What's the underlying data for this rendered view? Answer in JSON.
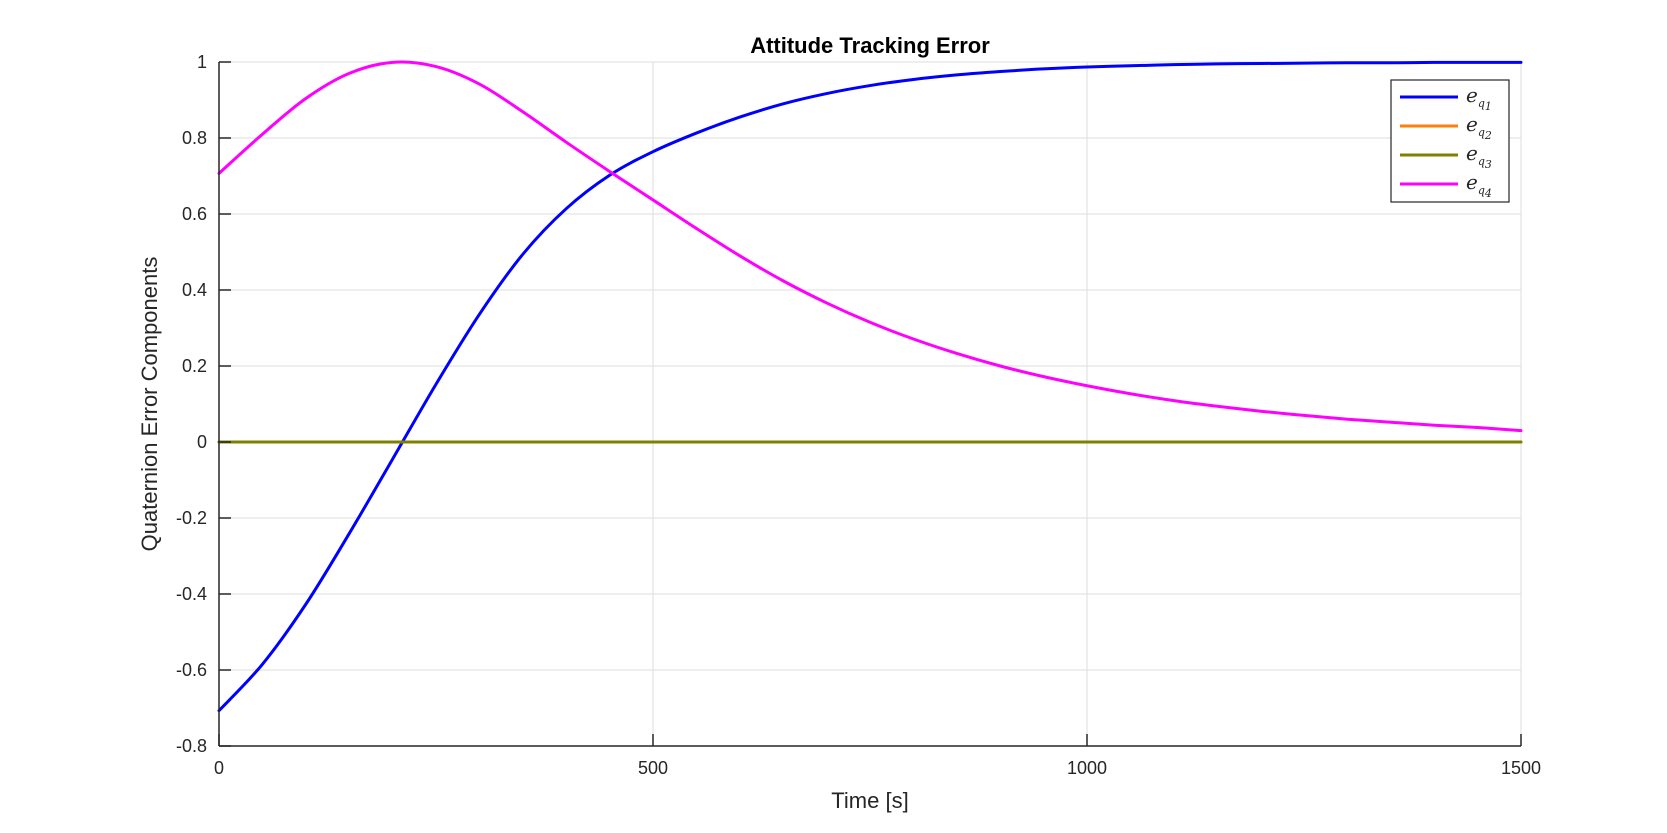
{
  "chart_data": {
    "type": "line",
    "title": "Attitude Tracking Error",
    "xlabel": "Time [s]",
    "ylabel": "Quaternion Error Components",
    "xlim": [
      0,
      1500
    ],
    "ylim": [
      -0.8,
      1
    ],
    "xticks": [
      0,
      500,
      1000,
      1500
    ],
    "xtick_labels": [
      "0",
      "500",
      "1000",
      "1500"
    ],
    "yticks": [
      -0.8,
      -0.6,
      -0.4,
      -0.2,
      0,
      0.2,
      0.4,
      0.6,
      0.8,
      1
    ],
    "ytick_labels": [
      "-0.8",
      "-0.6",
      "-0.4",
      "-0.2",
      "0",
      "0.2",
      "0.4",
      "0.6",
      "0.8",
      "1"
    ],
    "grid": true,
    "legend_position": "top-right",
    "x": [
      0,
      50,
      100,
      150,
      200,
      250,
      300,
      350,
      400,
      450,
      500,
      550,
      600,
      650,
      700,
      750,
      800,
      850,
      900,
      950,
      1000,
      1050,
      1100,
      1150,
      1200,
      1250,
      1300,
      1350,
      1400,
      1450,
      1500
    ],
    "series": [
      {
        "name": "e",
        "sub": "q",
        "subsub": "1",
        "color": "#0000ff",
        "values": [
          -0.707,
          -0.585,
          -0.427,
          -0.241,
          -0.045,
          0.152,
          0.336,
          0.494,
          0.614,
          0.702,
          0.764,
          0.813,
          0.855,
          0.89,
          0.917,
          0.938,
          0.954,
          0.966,
          0.975,
          0.982,
          0.987,
          0.99,
          0.993,
          0.995,
          0.996,
          0.997,
          0.998,
          0.998,
          0.999,
          0.999,
          0.999
        ]
      },
      {
        "name": "e",
        "sub": "q",
        "subsub": "2",
        "color": "#ff7f0e",
        "values": [
          0,
          0,
          0,
          0,
          0,
          0,
          0,
          0,
          0,
          0,
          0,
          0,
          0,
          0,
          0,
          0,
          0,
          0,
          0,
          0,
          0,
          0,
          0,
          0,
          0,
          0,
          0,
          0,
          0,
          0,
          0
        ]
      },
      {
        "name": "e",
        "sub": "q",
        "subsub": "3",
        "color": "#808000",
        "values": [
          0,
          0,
          0,
          0,
          0,
          0,
          0,
          0,
          0,
          0,
          0,
          0,
          0,
          0,
          0,
          0,
          0,
          0,
          0,
          0,
          0,
          0,
          0,
          0,
          0,
          0,
          0,
          0,
          0,
          0,
          0
        ]
      },
      {
        "name": "e",
        "sub": "q",
        "subsub": "4",
        "color": "#ff00ff",
        "values": [
          0.707,
          0.81,
          0.904,
          0.97,
          0.999,
          0.988,
          0.942,
          0.869,
          0.789,
          0.712,
          0.637,
          0.562,
          0.49,
          0.424,
          0.366,
          0.315,
          0.271,
          0.233,
          0.2,
          0.172,
          0.148,
          0.127,
          0.109,
          0.094,
          0.081,
          0.07,
          0.06,
          0.052,
          0.044,
          0.038,
          0.03
        ]
      }
    ]
  }
}
